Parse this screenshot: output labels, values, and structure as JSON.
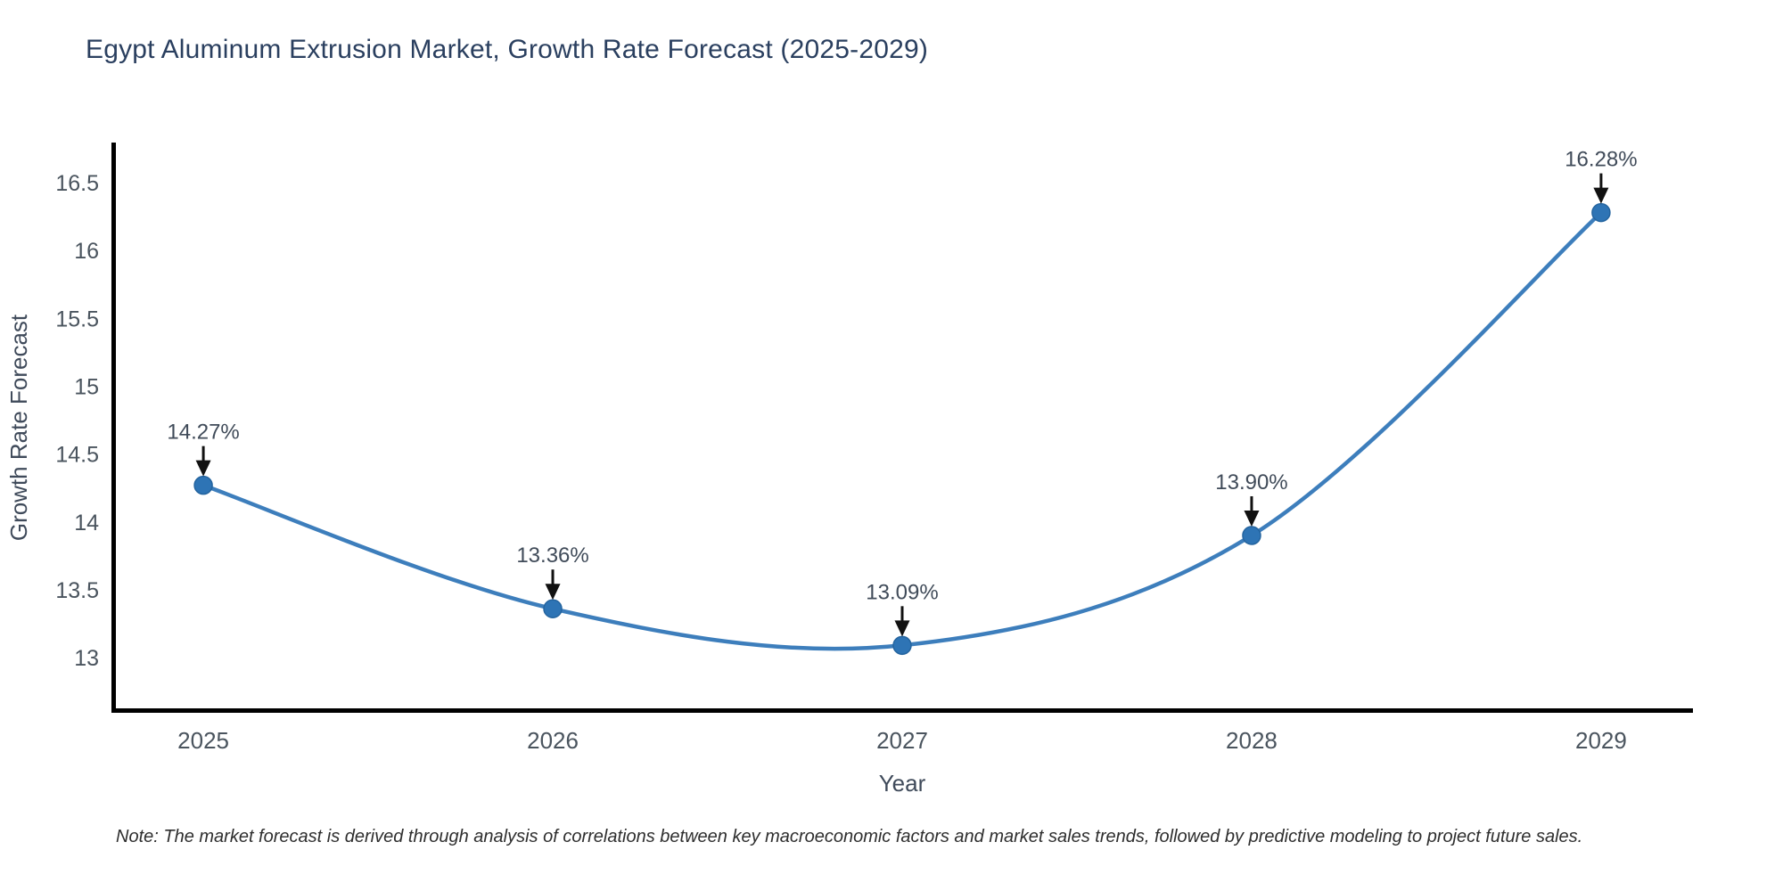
{
  "page": {
    "title": "Egypt Aluminum Extrusion Market, Growth Rate Forecast (2025-2029)",
    "note": "Note: The market forecast is derived through analysis of correlations between key macroeconomic factors and market sales trends, followed by predictive modeling to project future sales."
  },
  "chart_data": {
    "type": "line",
    "title": "Egypt Aluminum Extrusion Market, Growth Rate Forecast (2025-2029)",
    "xlabel": "Year",
    "ylabel": "Growth Rate Forecast",
    "x": [
      2025,
      2026,
      2027,
      2028,
      2029
    ],
    "x_tick_labels": [
      "2025",
      "2026",
      "2027",
      "2028",
      "2029"
    ],
    "series": [
      {
        "name": "Growth Rate Forecast",
        "values": [
          14.27,
          13.36,
          13.09,
          13.9,
          16.28
        ]
      }
    ],
    "point_labels": [
      "14.27%",
      "13.36%",
      "13.09%",
      "13.90%",
      "16.28%"
    ],
    "yticks": [
      13,
      13.5,
      14,
      14.5,
      15,
      15.5,
      16,
      16.5
    ],
    "ytick_labels": [
      "13",
      "13.5",
      "14",
      "14.5",
      "15",
      "15.5",
      "16",
      "16.5"
    ],
    "xlim": [
      2024.737,
      2029.263
    ],
    "ylim": [
      12.593,
      16.796
    ],
    "line_shape": "spline",
    "grid": false,
    "legend": "none",
    "colors": {
      "line": "#3d7ebc",
      "marker": "#2e74b5",
      "marker_edge": "#24649f",
      "axis": "#000000",
      "title": "#2a3f5f",
      "tick": "#4a545e",
      "axis_title": "#3f4a5a",
      "point_label": "#404b59",
      "arrow": "#111111",
      "note": "#2e2e2e",
      "background": "#ffffff"
    }
  }
}
